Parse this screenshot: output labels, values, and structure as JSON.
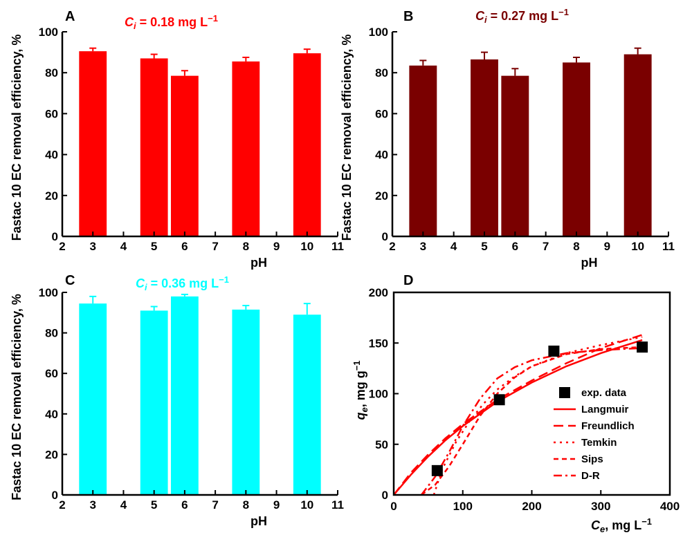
{
  "chart_data": [
    {
      "type": "bar",
      "panel_label": "A",
      "annotation": {
        "prefix": "C",
        "sub": "i",
        "text": " = 0.18 mg L",
        "sup": "−1"
      },
      "color": "#ff0000",
      "xlabel": "pH",
      "ylabel": "Fastac 10 EC removal efficiency, %",
      "xlim": [
        2,
        11
      ],
      "ylim": [
        0,
        100
      ],
      "xticks": [
        "2",
        "3",
        "4",
        "5",
        "6",
        "7",
        "8",
        "9",
        "10",
        "11"
      ],
      "yticks": [
        "0",
        "20",
        "40",
        "60",
        "80",
        "100"
      ],
      "x": [
        3,
        5,
        6,
        8,
        10
      ],
      "values": [
        90.5,
        87,
        78.5,
        85.5,
        89.5
      ],
      "errors": [
        1.5,
        2,
        2.5,
        2,
        2
      ]
    },
    {
      "type": "bar",
      "panel_label": "B",
      "annotation": {
        "prefix": "C",
        "sub": "i",
        "text": " = 0.27 mg L",
        "sup": "−1"
      },
      "color": "#7a0000",
      "xlabel": "pH",
      "ylabel": "Fastac 10 EC removal efficiency, %",
      "xlim": [
        2,
        11
      ],
      "ylim": [
        0,
        100
      ],
      "xticks": [
        "2",
        "3",
        "4",
        "5",
        "6",
        "7",
        "8",
        "9",
        "10",
        "11"
      ],
      "yticks": [
        "0",
        "20",
        "40",
        "60",
        "80",
        "100"
      ],
      "x": [
        3,
        5,
        6,
        8,
        10
      ],
      "values": [
        83.5,
        86.5,
        78.5,
        85,
        89
      ],
      "errors": [
        2.5,
        3.5,
        3.5,
        2.5,
        3
      ]
    },
    {
      "type": "bar",
      "panel_label": "C",
      "annotation": {
        "prefix": "C",
        "sub": "i",
        "text": " = 0.36 mg L",
        "sup": "−1"
      },
      "color": "#00ffff",
      "xlabel": "pH",
      "ylabel": "Fastac 10 EC removal efficiency, %",
      "xlim": [
        2,
        11
      ],
      "ylim": [
        0,
        100
      ],
      "xticks": [
        "2",
        "3",
        "4",
        "5",
        "6",
        "7",
        "8",
        "9",
        "10",
        "11"
      ],
      "yticks": [
        "0",
        "20",
        "40",
        "60",
        "80",
        "100"
      ],
      "x": [
        3,
        5,
        6,
        8,
        10
      ],
      "values": [
        94.5,
        91,
        98,
        91.5,
        89
      ],
      "errors": [
        3.5,
        2,
        1,
        2,
        5.5
      ]
    },
    {
      "type": "scatter",
      "panel_label": "D",
      "xlabel": {
        "prefix": "C",
        "sub": "e",
        "text": ", mg L",
        "sup": "−1"
      },
      "ylabel": {
        "prefix": "q",
        "sub": "e",
        "text": ", mg g",
        "sup": "−1"
      },
      "xlim": [
        0,
        400
      ],
      "ylim": [
        0,
        200
      ],
      "xticks": [
        "0",
        "100",
        "200",
        "300",
        "400"
      ],
      "yticks": [
        "0",
        "50",
        "100",
        "150",
        "200"
      ],
      "series": [
        {
          "name": "exp. data",
          "style": "square",
          "x": [
            63,
            153,
            232,
            360
          ],
          "y": [
            24,
            94,
            142,
            146
          ]
        },
        {
          "name": "Langmuir",
          "style": "solid",
          "x": [
            0,
            25,
            50,
            75,
            100,
            150,
            200,
            250,
            300,
            360
          ],
          "y": [
            0,
            20,
            38,
            54,
            68,
            92,
            111,
            127,
            140,
            153
          ]
        },
        {
          "name": "Freundlich",
          "style": "dash",
          "x": [
            0,
            25,
            50,
            75,
            100,
            150,
            200,
            250,
            300,
            360
          ],
          "y": [
            0,
            22,
            40,
            56,
            70,
            94,
            113,
            130,
            145,
            158
          ]
        },
        {
          "name": "Temkin",
          "style": "dot",
          "x": [
            58,
            70,
            90,
            110,
            130,
            150,
            175,
            200,
            250,
            300,
            360
          ],
          "y": [
            0,
            25,
            52,
            73,
            90,
            104,
            117,
            127,
            140,
            148,
            156
          ]
        },
        {
          "name": "Sips",
          "style": "shortdash",
          "x": [
            40,
            60,
            80,
            100,
            125,
            150,
            175,
            200,
            250,
            300,
            360
          ],
          "y": [
            0,
            10,
            28,
            50,
            78,
            100,
            116,
            127,
            139,
            144,
            146
          ]
        },
        {
          "name": "D-R",
          "style": "dashdot",
          "x": [
            40,
            60,
            80,
            100,
            125,
            150,
            175,
            200,
            250,
            300,
            360
          ],
          "y": [
            0,
            18,
            42,
            68,
            95,
            115,
            126,
            133,
            140,
            143,
            145
          ]
        }
      ]
    }
  ]
}
